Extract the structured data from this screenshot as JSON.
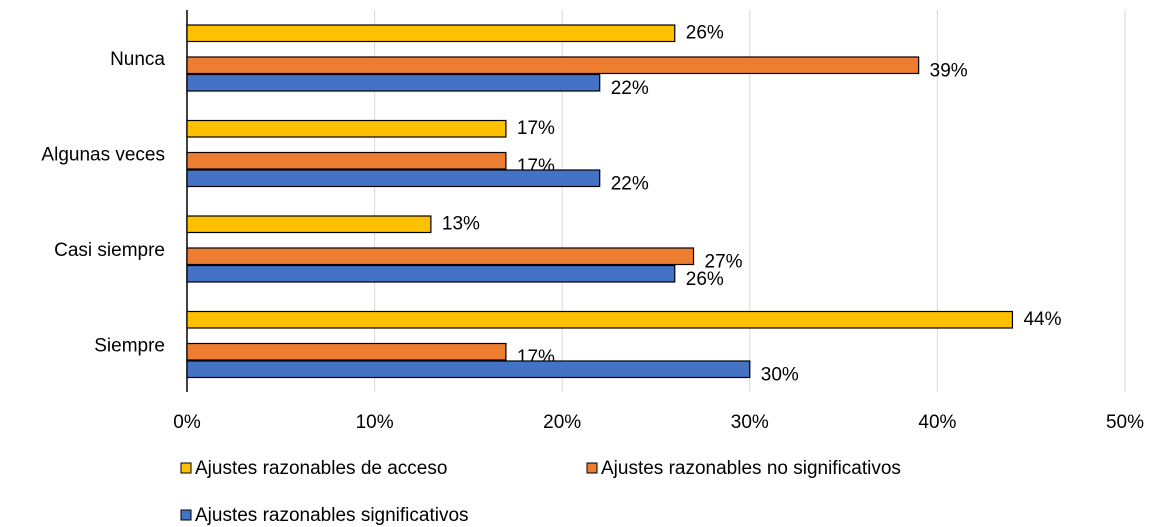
{
  "chart_data": {
    "type": "bar",
    "orientation": "horizontal",
    "categories": [
      "Nunca",
      "Algunas veces",
      "Casi siempre",
      "Siempre"
    ],
    "series": [
      {
        "name": "Ajustes razonables de acceso",
        "color": "#ffc000",
        "values": [
          26,
          17,
          13,
          44
        ],
        "value_labels": [
          "26%",
          "17%",
          "13%",
          "44%"
        ]
      },
      {
        "name": "Ajustes razonables no significativos",
        "color": "#ed7d31",
        "values": [
          39,
          17,
          27,
          17
        ],
        "value_labels": [
          "39%",
          "17%",
          "27%",
          "17%"
        ]
      },
      {
        "name": "Ajustes razonables significativos",
        "color": "#4472c4",
        "values": [
          22,
          22,
          26,
          30
        ],
        "value_labels": [
          "22%",
          "22%",
          "26%",
          "30%"
        ]
      }
    ],
    "xlim": [
      0,
      50
    ],
    "xticks": [
      {
        "value": 0,
        "label": "0%"
      },
      {
        "value": 10,
        "label": "10%"
      },
      {
        "value": 20,
        "label": "20%"
      },
      {
        "value": 30,
        "label": "30%"
      },
      {
        "value": 40,
        "label": "40%"
      },
      {
        "value": 50,
        "label": "50%"
      }
    ],
    "grid": true,
    "legend": "bottom"
  }
}
